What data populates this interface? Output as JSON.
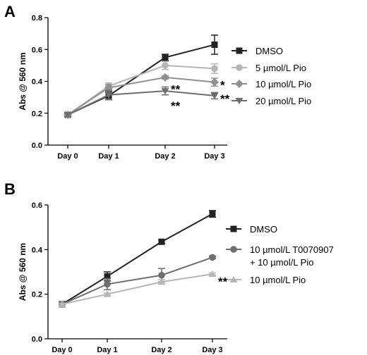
{
  "chart_data": [
    {
      "panel": "A",
      "type": "line",
      "xlabel": "",
      "ylabel": "Abs @ 560 nm",
      "categories": [
        "Day 0",
        "Day 1",
        "Day 2",
        "Day 3"
      ],
      "ylim": [
        0,
        0.8
      ],
      "yticks": [
        "0.0",
        "0.2",
        "0.4",
        "0.6",
        "0.8"
      ],
      "legend_position": "right",
      "series": [
        {
          "name": "DMSO",
          "marker": "square",
          "color": "#222222",
          "values": [
            0.19,
            0.31,
            0.55,
            0.63
          ],
          "errors": [
            0.01,
            0.025,
            0.02,
            0.06
          ]
        },
        {
          "name": "5 µmol/L Pio",
          "marker": "circle",
          "color": "#b5b5b5",
          "values": [
            0.19,
            0.37,
            0.5,
            0.48
          ],
          "errors": [
            0.01,
            0.02,
            0.025,
            0.03
          ]
        },
        {
          "name": "10 µmol/L Pio",
          "marker": "diamond",
          "color": "#909090",
          "values": [
            0.19,
            0.36,
            0.425,
            0.395
          ],
          "errors": [
            0.01,
            0.02,
            0.01,
            0.025
          ]
        },
        {
          "name": "20 µmol/L Pio",
          "marker": "triangle-down",
          "color": "#6e6e6e",
          "values": [
            0.19,
            0.315,
            0.34,
            0.31
          ],
          "errors": [
            0.01,
            0.03,
            0.025,
            0.02
          ]
        }
      ],
      "annotations": [
        {
          "text": "**",
          "x": "Day 2",
          "y": 0.37
        },
        {
          "text": "**",
          "x": "Day 2",
          "y": 0.265
        },
        {
          "text": "*",
          "x": "Day 3",
          "y": 0.395
        },
        {
          "text": "**",
          "x": "Day 3",
          "y": 0.31
        }
      ]
    },
    {
      "panel": "B",
      "type": "line",
      "xlabel": "",
      "ylabel": "Abs @ 560 nm",
      "categories": [
        "Day 0",
        "Day 1",
        "Day 2",
        "Day 3"
      ],
      "ylim": [
        0,
        0.6
      ],
      "yticks": [
        "0.0",
        "0.2",
        "0.4",
        "0.6"
      ],
      "legend_position": "right",
      "series": [
        {
          "name": "DMSO",
          "marker": "square",
          "color": "#222222",
          "values": [
            0.155,
            0.28,
            0.435,
            0.56
          ],
          "errors": [
            0.005,
            0.02,
            0.008,
            0.015
          ]
        },
        {
          "name": "10 µmol/L T0070907\n+ 10 µmol/L Pio",
          "marker": "circle",
          "color": "#6e6e6e",
          "values": [
            0.155,
            0.245,
            0.285,
            0.365
          ],
          "errors": [
            0.005,
            0.025,
            0.03,
            0.005
          ]
        },
        {
          "name": "10 µmol/L Pio",
          "marker": "triangle-up",
          "color": "#b5b5b5",
          "values": [
            0.155,
            0.2,
            0.255,
            0.29
          ],
          "errors": [
            0.005,
            0.005,
            0.01,
            0.005
          ]
        }
      ],
      "annotations": [
        {
          "text": "**",
          "x": "Day 3",
          "y": 0.27
        }
      ]
    }
  ]
}
